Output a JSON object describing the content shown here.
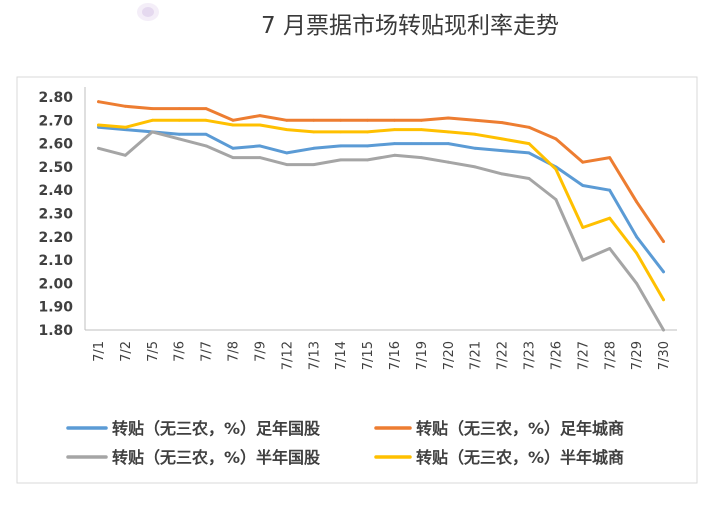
{
  "chart_data": {
    "type": "line",
    "title": "7 月票据市场转贴现利率走势",
    "categories": [
      "7/1",
      "7/2",
      "7/5",
      "7/6",
      "7/7",
      "7/8",
      "7/9",
      "7/12",
      "7/13",
      "7/14",
      "7/15",
      "7/16",
      "7/19",
      "7/20",
      "7/21",
      "7/22",
      "7/23",
      "7/26",
      "7/27",
      "7/28",
      "7/29",
      "7/30"
    ],
    "ylim": [
      1.8,
      2.8
    ],
    "yticks": [
      "2.80",
      "2.70",
      "2.60",
      "2.50",
      "2.40",
      "2.30",
      "2.20",
      "2.10",
      "2.00",
      "1.90",
      "1.80"
    ],
    "grid": false,
    "legend": "bottom",
    "series": [
      {
        "name": "转贴（无三农，%）足年国股",
        "color": "#5B9BD5",
        "values": [
          2.67,
          2.66,
          2.65,
          2.64,
          2.64,
          2.58,
          2.59,
          2.56,
          2.58,
          2.59,
          2.59,
          2.6,
          2.6,
          2.6,
          2.58,
          2.57,
          2.56,
          2.5,
          2.42,
          2.4,
          2.2,
          2.05
        ]
      },
      {
        "name": "转贴（无三农，%）足年城商",
        "color": "#ED7D31",
        "values": [
          2.78,
          2.76,
          2.75,
          2.75,
          2.75,
          2.7,
          2.72,
          2.7,
          2.7,
          2.7,
          2.7,
          2.7,
          2.7,
          2.71,
          2.7,
          2.69,
          2.67,
          2.62,
          2.52,
          2.54,
          2.35,
          2.18
        ]
      },
      {
        "name": "转贴（无三农，%）半年国股",
        "color": "#A5A5A5",
        "values": [
          2.58,
          2.55,
          2.65,
          2.62,
          2.59,
          2.54,
          2.54,
          2.51,
          2.51,
          2.53,
          2.53,
          2.55,
          2.54,
          2.52,
          2.5,
          2.47,
          2.45,
          2.36,
          2.1,
          2.15,
          2.0,
          1.8
        ]
      },
      {
        "name": "转贴（无三农，%）半年城商",
        "color": "#FFC000",
        "values": [
          2.68,
          2.67,
          2.7,
          2.7,
          2.7,
          2.68,
          2.68,
          2.66,
          2.65,
          2.65,
          2.65,
          2.66,
          2.66,
          2.65,
          2.64,
          2.62,
          2.6,
          2.49,
          2.24,
          2.28,
          2.13,
          1.93
        ]
      }
    ]
  }
}
